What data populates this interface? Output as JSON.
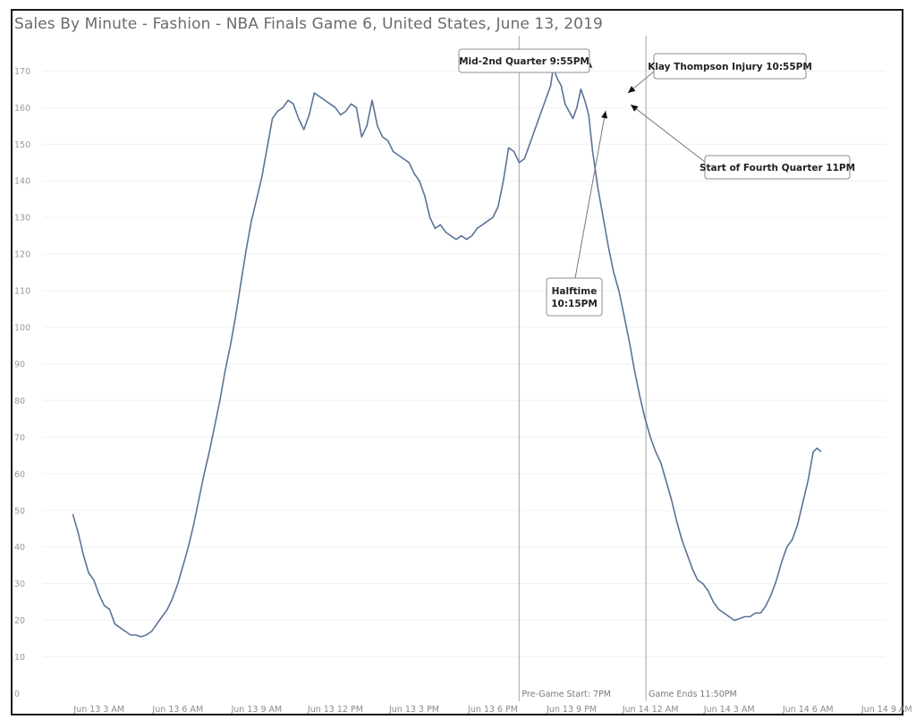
{
  "chart_data": {
    "type": "line",
    "title": "Sales By Minute - Fashion - NBA Finals Game 6, United States, June 13, 2019",
    "ylim": [
      0,
      170
    ],
    "yticks": [
      0,
      10,
      20,
      30,
      40,
      50,
      60,
      70,
      80,
      90,
      100,
      110,
      120,
      130,
      140,
      150,
      160,
      170
    ],
    "xlim": [
      1.5,
      33.2
    ],
    "xticks": [
      {
        "x": 3,
        "label": "Jun 13 3 AM"
      },
      {
        "x": 6,
        "label": "Jun 13 6 AM"
      },
      {
        "x": 9,
        "label": "Jun 13 9 AM"
      },
      {
        "x": 12,
        "label": "Jun 13 12 PM"
      },
      {
        "x": 15,
        "label": "Jun 13 3 PM"
      },
      {
        "x": 18,
        "label": "Jun 13 6 PM"
      },
      {
        "x": 21,
        "label": "Jun 13 9 PM"
      },
      {
        "x": 24,
        "label": "Jun 14 12 AM"
      },
      {
        "x": 27,
        "label": "Jun 14 3 AM"
      },
      {
        "x": 30,
        "label": "Jun 14 6 AM"
      },
      {
        "x": 33,
        "label": "Jun 14 9 AM"
      }
    ],
    "grid": true,
    "series": [
      {
        "points": [
          [
            2.0,
            49
          ],
          [
            2.2,
            44
          ],
          [
            2.4,
            38
          ],
          [
            2.6,
            33
          ],
          [
            2.8,
            31
          ],
          [
            3.0,
            27
          ],
          [
            3.2,
            24
          ],
          [
            3.4,
            23
          ],
          [
            3.6,
            19
          ],
          [
            3.8,
            18
          ],
          [
            4.0,
            17
          ],
          [
            4.2,
            16
          ],
          [
            4.4,
            16
          ],
          [
            4.6,
            15.5
          ],
          [
            4.8,
            16
          ],
          [
            5.0,
            17
          ],
          [
            5.2,
            19
          ],
          [
            5.4,
            21
          ],
          [
            5.6,
            23
          ],
          [
            5.8,
            26
          ],
          [
            6.0,
            30
          ],
          [
            6.2,
            35
          ],
          [
            6.4,
            40
          ],
          [
            6.6,
            46
          ],
          [
            6.8,
            53
          ],
          [
            7.0,
            60
          ],
          [
            7.2,
            66
          ],
          [
            7.4,
            73
          ],
          [
            7.6,
            80
          ],
          [
            7.8,
            88
          ],
          [
            8.0,
            95
          ],
          [
            8.2,
            103
          ],
          [
            8.4,
            112
          ],
          [
            8.6,
            121
          ],
          [
            8.8,
            129
          ],
          [
            9.0,
            135
          ],
          [
            9.2,
            141
          ],
          [
            9.4,
            149
          ],
          [
            9.6,
            157
          ],
          [
            9.8,
            159
          ],
          [
            10.0,
            160
          ],
          [
            10.2,
            162
          ],
          [
            10.4,
            161
          ],
          [
            10.6,
            157
          ],
          [
            10.8,
            154
          ],
          [
            11.0,
            158
          ],
          [
            11.2,
            164
          ],
          [
            11.4,
            163
          ],
          [
            11.6,
            162
          ],
          [
            11.8,
            161
          ],
          [
            12.0,
            160
          ],
          [
            12.2,
            158
          ],
          [
            12.4,
            159
          ],
          [
            12.6,
            161
          ],
          [
            12.8,
            160
          ],
          [
            13.0,
            152
          ],
          [
            13.2,
            155
          ],
          [
            13.4,
            162
          ],
          [
            13.6,
            155
          ],
          [
            13.8,
            152
          ],
          [
            14.0,
            151
          ],
          [
            14.2,
            148
          ],
          [
            14.4,
            147
          ],
          [
            14.6,
            146
          ],
          [
            14.8,
            145
          ],
          [
            15.0,
            142
          ],
          [
            15.2,
            140
          ],
          [
            15.4,
            136
          ],
          [
            15.6,
            130
          ],
          [
            15.8,
            127
          ],
          [
            16.0,
            128
          ],
          [
            16.2,
            126
          ],
          [
            16.4,
            125
          ],
          [
            16.6,
            124
          ],
          [
            16.8,
            125
          ],
          [
            17.0,
            124
          ],
          [
            17.2,
            125
          ],
          [
            17.4,
            127
          ],
          [
            17.6,
            128
          ],
          [
            17.8,
            129
          ],
          [
            18.0,
            130
          ],
          [
            18.2,
            133
          ],
          [
            18.4,
            140
          ],
          [
            18.6,
            149
          ],
          [
            18.8,
            148
          ],
          [
            19.0,
            145
          ],
          [
            19.2,
            146
          ],
          [
            19.4,
            150
          ],
          [
            19.6,
            154
          ],
          [
            19.8,
            158
          ],
          [
            20.0,
            162
          ],
          [
            20.2,
            166
          ],
          [
            20.3,
            171
          ],
          [
            20.45,
            168
          ],
          [
            20.6,
            166
          ],
          [
            20.75,
            161
          ],
          [
            20.9,
            159
          ],
          [
            21.05,
            157
          ],
          [
            21.2,
            160
          ],
          [
            21.35,
            165
          ],
          [
            21.5,
            162
          ],
          [
            21.65,
            158
          ],
          [
            21.8,
            148
          ],
          [
            22.0,
            138
          ],
          [
            22.2,
            130
          ],
          [
            22.4,
            122
          ],
          [
            22.6,
            115
          ],
          [
            22.8,
            110
          ],
          [
            23.0,
            103
          ],
          [
            23.2,
            96
          ],
          [
            23.4,
            88
          ],
          [
            23.6,
            81
          ],
          [
            23.8,
            75
          ],
          [
            24.0,
            70
          ],
          [
            24.2,
            66
          ],
          [
            24.4,
            63
          ],
          [
            24.6,
            58
          ],
          [
            24.8,
            53
          ],
          [
            25.0,
            47
          ],
          [
            25.2,
            42
          ],
          [
            25.4,
            38
          ],
          [
            25.6,
            34
          ],
          [
            25.8,
            31
          ],
          [
            26.0,
            30
          ],
          [
            26.2,
            28
          ],
          [
            26.4,
            25
          ],
          [
            26.6,
            23
          ],
          [
            26.8,
            22
          ],
          [
            27.0,
            21
          ],
          [
            27.2,
            20
          ],
          [
            27.4,
            20.5
          ],
          [
            27.6,
            21
          ],
          [
            27.8,
            21
          ],
          [
            28.0,
            22
          ],
          [
            28.2,
            22
          ],
          [
            28.4,
            24
          ],
          [
            28.6,
            27
          ],
          [
            28.8,
            31
          ],
          [
            29.0,
            36
          ],
          [
            29.2,
            40
          ],
          [
            29.4,
            42
          ],
          [
            29.6,
            46
          ],
          [
            29.8,
            52
          ],
          [
            30.0,
            58
          ],
          [
            30.2,
            66
          ],
          [
            30.35,
            67
          ],
          [
            30.5,
            66
          ]
        ]
      }
    ],
    "reference_lines": [
      {
        "x": 19.0,
        "label": "Pre-Game Start: 7PM"
      },
      {
        "x": 23.83,
        "label": "Game Ends 11:50PM"
      }
    ],
    "annotations": [
      {
        "lines": [
          "Mid-2nd Quarter 9:55PM"
        ]
      },
      {
        "lines": [
          "Klay Thompson Injury 10:55PM"
        ]
      },
      {
        "lines": [
          "Start of Fourth Quarter 11PM"
        ]
      },
      {
        "lines": [
          "Halftime",
          "10:15PM"
        ]
      }
    ]
  }
}
